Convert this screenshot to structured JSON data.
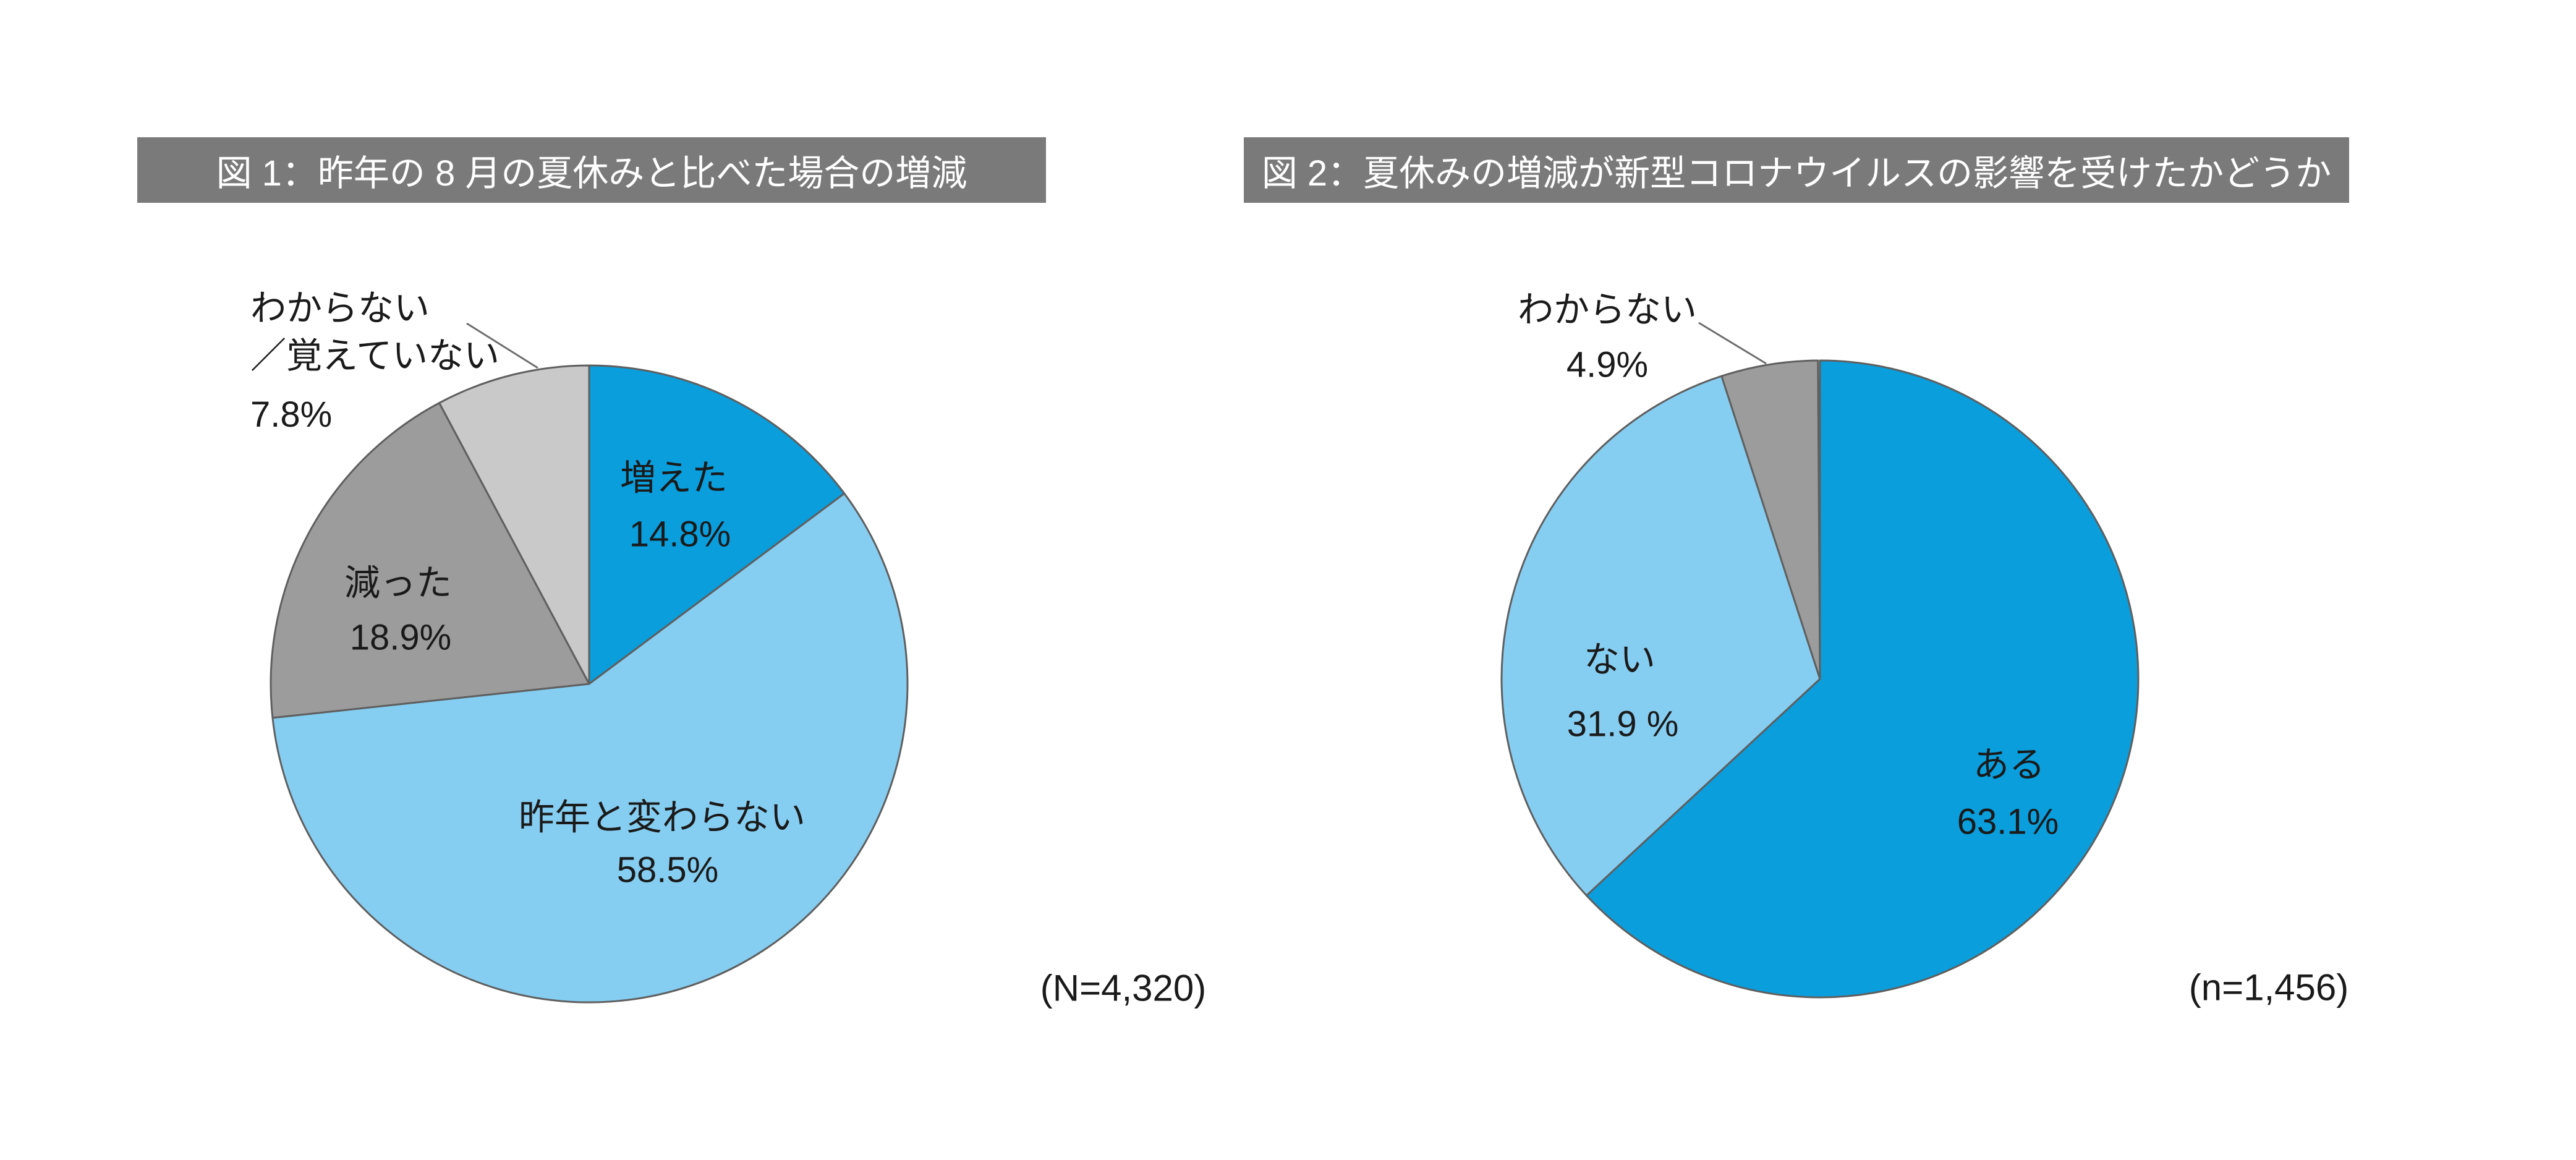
{
  "page": {
    "background_color": "#ffffff",
    "title_bar_color": "#7a7a7a",
    "title_text_color": "#ffffff",
    "slice_border_color": "#5f5f5f",
    "leader_line_color": "#6e6e6e"
  },
  "chart_data": [
    {
      "type": "pie",
      "title": "図 1：昨年の 8 月の夏休みと比べた場合の増減",
      "sample_size_label": "(N=4,320)",
      "sample_size": 4320,
      "start_angle_deg": 0,
      "direction": "clockwise",
      "legend_position": "labels-on-chart",
      "slices": [
        {
          "label": "増えた",
          "value": 14.8,
          "pct_display": "14.8%",
          "color": "#0A9EDC"
        },
        {
          "label": "昨年と変わらない",
          "value": 58.5,
          "pct_display": "58.5%",
          "color": "#86CEF1"
        },
        {
          "label": "減った",
          "value": 18.9,
          "pct_display": "18.9%",
          "color": "#9C9C9C"
        },
        {
          "label": "わからない／覚えていない",
          "label_line1": "わからない",
          "label_line2": "／覚えていない",
          "value": 7.8,
          "pct_display": "7.8%",
          "color": "#C9C9C9"
        }
      ]
    },
    {
      "type": "pie",
      "title": "図 2：夏休みの増減が新型コロナウイルスの影響を受けたかどうか",
      "sample_size_label": "(n=1,456)",
      "sample_size": 1456,
      "start_angle_deg": 0,
      "direction": "clockwise",
      "legend_position": "labels-on-chart",
      "slices": [
        {
          "label": "ある",
          "value": 63.1,
          "pct_display": "63.1%",
          "color": "#0A9EDC"
        },
        {
          "label": "ない",
          "value": 31.9,
          "pct_display": "31.9 %",
          "color": "#86CEF1"
        },
        {
          "label": "わからない",
          "value": 4.9,
          "pct_display": "4.9%",
          "color": "#9C9C9C"
        }
      ]
    }
  ]
}
